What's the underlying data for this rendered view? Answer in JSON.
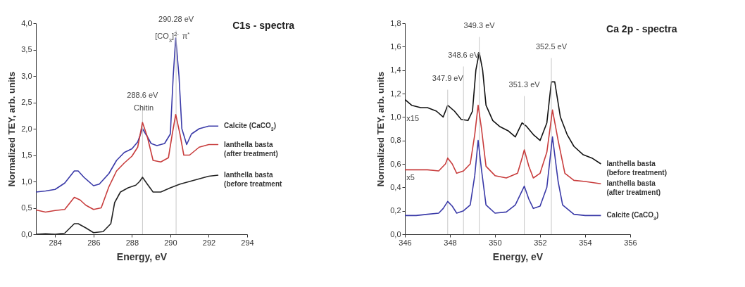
{
  "chart_data": [
    {
      "type": "line",
      "title": "C1s - spectra",
      "xlabel": "Energy, eV",
      "ylabel": "Normalized  TEY, arb. units",
      "xlim": [
        283,
        294
      ],
      "xticks": [
        284,
        286,
        288,
        290,
        292,
        294
      ],
      "ylim": [
        0,
        4
      ],
      "yticks": [
        {
          "value": 0,
          "label": "0,0"
        },
        {
          "value": 0.5,
          "label": "0,5"
        },
        {
          "value": 1,
          "label": "1,0"
        },
        {
          "value": 1.5,
          "label": "1,5"
        },
        {
          "value": 2,
          "label": "2,0"
        },
        {
          "value": 2.5,
          "label": "2,5"
        },
        {
          "value": 3,
          "label": "3,0"
        },
        {
          "value": 3.5,
          "label": "3,5"
        },
        {
          "value": 4,
          "label": "4,0"
        }
      ],
      "grid": false,
      "legend": false,
      "marker": "none",
      "line_style": "solid",
      "series": [
        {
          "name": "Calcite (CaCO$_{3}$)",
          "color": "#3a3aa8",
          "x": [
            283,
            283.5,
            284,
            284.5,
            285,
            285.2,
            285.5,
            286,
            286.3,
            286.8,
            287.2,
            287.6,
            288,
            288.3,
            288.55,
            288.8,
            289,
            289.3,
            289.7,
            290,
            290.15,
            290.28,
            290.45,
            290.6,
            290.85,
            291.1,
            291.5,
            292,
            292.5
          ],
          "values": [
            0.8,
            0.82,
            0.85,
            0.97,
            1.2,
            1.2,
            1.08,
            0.92,
            0.95,
            1.15,
            1.4,
            1.55,
            1.62,
            1.75,
            2.0,
            1.85,
            1.72,
            1.68,
            1.72,
            1.9,
            3.0,
            3.72,
            3.0,
            2.0,
            1.7,
            1.9,
            2.0,
            2.05,
            2.05
          ]
        },
        {
          "name": "Ianthella basta (after treatment)",
          "color": "#c83c3c",
          "x": [
            283,
            283.5,
            284,
            284.5,
            285,
            285.3,
            285.6,
            286,
            286.4,
            286.8,
            287.2,
            287.6,
            288,
            288.3,
            288.55,
            288.8,
            289.1,
            289.5,
            289.9,
            290.1,
            290.28,
            290.5,
            290.7,
            291,
            291.5,
            292,
            292.5
          ],
          "values": [
            0.46,
            0.42,
            0.45,
            0.47,
            0.7,
            0.65,
            0.55,
            0.47,
            0.5,
            0.9,
            1.2,
            1.35,
            1.48,
            1.65,
            2.12,
            1.85,
            1.4,
            1.37,
            1.45,
            1.9,
            2.27,
            1.9,
            1.5,
            1.5,
            1.65,
            1.7,
            1.7
          ]
        },
        {
          "name": "Ianthella basta (before treatment",
          "color": "#222222",
          "x": [
            283,
            283.5,
            284,
            284.5,
            285,
            285.2,
            285.6,
            286,
            286.5,
            286.9,
            287.1,
            287.4,
            287.8,
            288.2,
            288.4,
            288.55,
            288.8,
            289.1,
            289.5,
            290,
            290.5,
            291,
            291.5,
            292,
            292.5
          ],
          "values": [
            0.0,
            0.01,
            0.0,
            0.02,
            0.2,
            0.2,
            0.12,
            0.03,
            0.05,
            0.2,
            0.6,
            0.8,
            0.88,
            0.93,
            1.0,
            1.08,
            0.95,
            0.8,
            0.8,
            0.88,
            0.95,
            1.0,
            1.05,
            1.1,
            1.12
          ]
        }
      ],
      "ref_lines": [
        {
          "axis": "x",
          "value": 288.55,
          "label": "288.6 eV",
          "color": "#c8c8c8"
        },
        {
          "axis": "x",
          "value": 290.3,
          "label": "290.28 eV",
          "color": "#c8c8c8"
        }
      ],
      "annotations": [
        "Chitin",
        "[CO$_{3}$]$^{2-}$",
        "π$^{*}$"
      ]
    },
    {
      "type": "line",
      "title": "Ca 2p - spectra",
      "xlabel": "Energy, eV",
      "ylabel": "Normalized TEY, arb. units",
      "xlim": [
        346,
        356
      ],
      "xticks": [
        346,
        348,
        350,
        352,
        354,
        356
      ],
      "ylim": [
        0,
        1.8
      ],
      "yticks": [
        {
          "value": 0,
          "label": "0,0"
        },
        {
          "value": 0.2,
          "label": "0,2"
        },
        {
          "value": 0.4,
          "label": "0,4"
        },
        {
          "value": 0.6,
          "label": "0,6"
        },
        {
          "value": 0.8,
          "label": "0,8"
        },
        {
          "value": 1,
          "label": "1,0"
        },
        {
          "value": 1.2,
          "label": "1,2"
        },
        {
          "value": 1.4,
          "label": "1,4"
        },
        {
          "value": 1.6,
          "label": "1,6"
        },
        {
          "value": 1.8,
          "label": "1,8"
        }
      ],
      "grid": false,
      "legend": false,
      "marker": "none",
      "line_style": "solid",
      "series": [
        {
          "name": "Ianthella basta (before treatment)",
          "color": "#111111",
          "x": [
            346,
            346.3,
            346.7,
            347,
            347.4,
            347.7,
            347.9,
            348.2,
            348.5,
            348.8,
            349,
            349.15,
            349.3,
            349.45,
            349.6,
            349.9,
            350.2,
            350.6,
            350.9,
            351.2,
            351.4,
            351.7,
            352,
            352.3,
            352.5,
            352.65,
            352.9,
            353.2,
            353.5,
            353.9,
            354.3,
            354.7
          ],
          "values": [
            1.15,
            1.1,
            1.08,
            1.08,
            1.05,
            1.0,
            1.1,
            1.05,
            0.98,
            0.97,
            1.05,
            1.4,
            1.55,
            1.4,
            1.1,
            0.97,
            0.92,
            0.88,
            0.83,
            0.95,
            0.92,
            0.85,
            0.8,
            0.95,
            1.3,
            1.3,
            1.0,
            0.85,
            0.75,
            0.68,
            0.65,
            0.6
          ]
        },
        {
          "name": "Ianthella basta (after treatment)",
          "color": "#c83c3c",
          "x": [
            346,
            346.5,
            347,
            347.5,
            347.8,
            347.9,
            348.1,
            348.3,
            348.6,
            348.9,
            349.1,
            349.25,
            349.4,
            349.6,
            350,
            350.5,
            351,
            351.2,
            351.3,
            351.5,
            351.7,
            352,
            352.3,
            352.55,
            352.8,
            353.1,
            353.5,
            354,
            354.7
          ],
          "values": [
            0.55,
            0.55,
            0.55,
            0.54,
            0.6,
            0.65,
            0.6,
            0.52,
            0.54,
            0.6,
            0.85,
            1.1,
            0.9,
            0.58,
            0.5,
            0.48,
            0.52,
            0.65,
            0.72,
            0.58,
            0.48,
            0.52,
            0.7,
            1.06,
            0.8,
            0.52,
            0.46,
            0.45,
            0.43
          ]
        },
        {
          "name": "Calcite (CaCO$_{3}$)",
          "color": "#3a3aa8",
          "x": [
            346,
            346.5,
            347,
            347.5,
            347.7,
            347.9,
            348.1,
            348.3,
            348.6,
            348.9,
            349.1,
            349.25,
            349.4,
            349.6,
            350,
            350.5,
            350.9,
            351.15,
            351.3,
            351.5,
            351.7,
            352,
            352.3,
            352.55,
            352.8,
            353,
            353.5,
            354,
            354.7
          ],
          "values": [
            0.16,
            0.16,
            0.17,
            0.18,
            0.22,
            0.28,
            0.24,
            0.18,
            0.2,
            0.25,
            0.5,
            0.8,
            0.55,
            0.25,
            0.18,
            0.19,
            0.25,
            0.35,
            0.41,
            0.3,
            0.22,
            0.24,
            0.4,
            0.83,
            0.45,
            0.25,
            0.17,
            0.16,
            0.16
          ]
        }
      ],
      "ref_lines": [
        {
          "axis": "x",
          "value": 347.9,
          "label": "347.9 eV",
          "color": "#c8c8c8"
        },
        {
          "axis": "x",
          "value": 348.6,
          "label": "348.6 eV",
          "color": "#c8c8c8"
        },
        {
          "axis": "x",
          "value": 349.3,
          "label": "349.3 eV",
          "color": "#c8c8c8"
        },
        {
          "axis": "x",
          "value": 351.3,
          "label": "351.3 eV",
          "color": "#c8c8c8"
        },
        {
          "axis": "x",
          "value": 352.5,
          "label": "352.5 eV",
          "color": "#c8c8c8"
        }
      ],
      "annotations": [
        "x15",
        "x5"
      ]
    }
  ]
}
